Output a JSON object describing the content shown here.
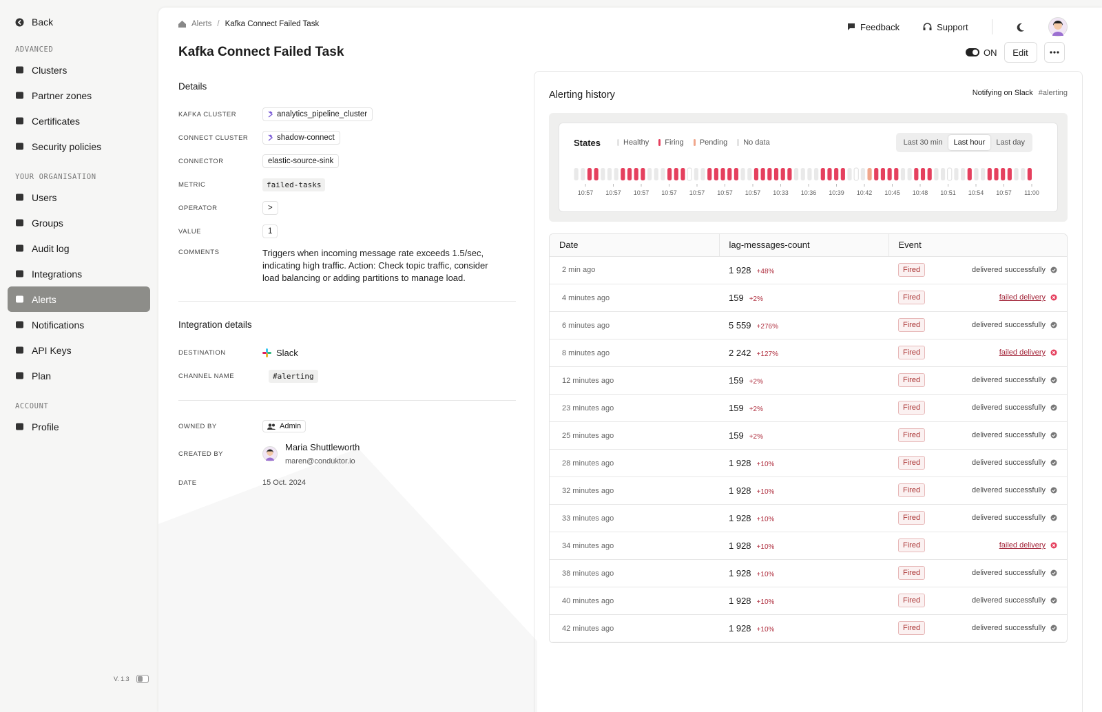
{
  "sidebar": {
    "back": "Back",
    "sections": [
      {
        "title": "ADVANCED",
        "items": [
          {
            "label": "Clusters"
          },
          {
            "label": "Partner zones"
          },
          {
            "label": "Certificates"
          },
          {
            "label": "Security policies"
          }
        ]
      },
      {
        "title": "YOUR ORGANISATION",
        "items": [
          {
            "label": "Users"
          },
          {
            "label": "Groups"
          },
          {
            "label": "Audit log"
          },
          {
            "label": "Integrations"
          },
          {
            "label": "Alerts",
            "active": true
          },
          {
            "label": "Notifications"
          },
          {
            "label": "API Keys"
          },
          {
            "label": "Plan"
          }
        ]
      },
      {
        "title": "ACCOUNT",
        "items": [
          {
            "label": "Profile"
          }
        ]
      }
    ],
    "version": "V. 1.3"
  },
  "header": {
    "breadcrumb": [
      "Alerts",
      "Kafka Connect Failed Task"
    ],
    "separator": "/",
    "title": "Kafka Connect Failed Task",
    "links": [
      "Feedback",
      "Support"
    ],
    "toggle": "ON",
    "edit": "Edit"
  },
  "details": {
    "title": "Details",
    "rows": [
      {
        "label": "KAFKA CLUSTER",
        "value": "analytics_pipeline_cluster"
      },
      {
        "label": "CONNECT CLUSTER",
        "value": "shadow-connect"
      },
      {
        "label": "CONNECTOR",
        "value": "elastic-source-sink"
      },
      {
        "label": "METRIC",
        "value": "failed-tasks"
      },
      {
        "label": "OPERATOR",
        "value": ">"
      },
      {
        "label": "VALUE",
        "value": "1"
      },
      {
        "label": "COMMENTS",
        "value": "Triggers when incoming message rate exceeds 1.5/sec, indicating high traffic. Action: Check topic traffic, consider load balancing or adding partitions to manage load."
      }
    ]
  },
  "integration": {
    "title": "Integration details",
    "rows": [
      {
        "label": "DESTINATION",
        "value": "Slack"
      },
      {
        "label": "CHANNEL NAME",
        "value": "#alerting"
      }
    ]
  },
  "ownership": {
    "owned_by_label": "OWNED BY",
    "owned_by": "Admin",
    "created_by_label": "CREATED BY",
    "created_by_name": "Maria Shuttleworth",
    "created_by_email": "maren@conduktor.io",
    "date_label": "DATE",
    "date": "15 Oct. 2024"
  },
  "history": {
    "title": "Alerting history",
    "notifying": "Notifying on Slack",
    "channel": "#alerting",
    "states_title": "States",
    "legend": [
      "Healthy",
      "Firing",
      "Pending",
      "No data"
    ],
    "ranges": [
      {
        "label": "Last 30 min"
      },
      {
        "label": "Last hour",
        "active": true
      },
      {
        "label": "Last day"
      }
    ],
    "times": [
      "10:57",
      "10:57",
      "10:57",
      "10:57",
      "10:57",
      "10:57",
      "10:57",
      "10:33",
      "10:36",
      "10:39",
      "10:42",
      "10:45",
      "10:48",
      "10:51",
      "10:54",
      "10:57",
      "11:00"
    ],
    "columns": [
      "Date",
      "lag-messages-count",
      "Event"
    ],
    "rows": [
      {
        "date": "2 min ago",
        "count": "1 928",
        "change": "+48%",
        "event": "Fired",
        "status": "delivered successfully"
      },
      {
        "date": "4 minutes ago",
        "count": "159",
        "change": "+2%",
        "event": "Fired",
        "status": "failed delivery",
        "failed": true
      },
      {
        "date": "6 minutes ago",
        "count": "5 559",
        "change": "+276%",
        "event": "Fired",
        "status": "delivered successfully"
      },
      {
        "date": "8 minutes ago",
        "count": "2 242",
        "change": "+127%",
        "event": "Fired",
        "status": "failed delivery",
        "failed": true
      },
      {
        "date": "12 minutes ago",
        "count": "159",
        "change": "+2%",
        "event": "Fired",
        "status": "delivered successfully"
      },
      {
        "date": "23 minutes ago",
        "count": "159",
        "change": "+2%",
        "event": "Fired",
        "status": "delivered successfully"
      },
      {
        "date": "25 minutes ago",
        "count": "159",
        "change": "+2%",
        "event": "Fired",
        "status": "delivered successfully"
      },
      {
        "date": "28 minutes ago",
        "count": "1 928",
        "change": "+10%",
        "event": "Fired",
        "status": "delivered successfully"
      },
      {
        "date": "32 minutes ago",
        "count": "1 928",
        "change": "+10%",
        "event": "Fired",
        "status": "delivered successfully"
      },
      {
        "date": "33 minutes ago",
        "count": "1 928",
        "change": "+10%",
        "event": "Fired",
        "status": "delivered successfully"
      },
      {
        "date": "34 minutes ago",
        "count": "1 928",
        "change": "+10%",
        "event": "Fired",
        "status": "failed delivery",
        "failed": true
      },
      {
        "date": "38 minutes ago",
        "count": "1 928",
        "change": "+10%",
        "event": "Fired",
        "status": "delivered successfully"
      },
      {
        "date": "40 minutes ago",
        "count": "1 928",
        "change": "+10%",
        "event": "Fired",
        "status": "delivered successfully"
      },
      {
        "date": "42 minutes ago",
        "count": "1 928",
        "change": "+10%",
        "event": "Fired",
        "status": "delivered successfully"
      }
    ]
  }
}
